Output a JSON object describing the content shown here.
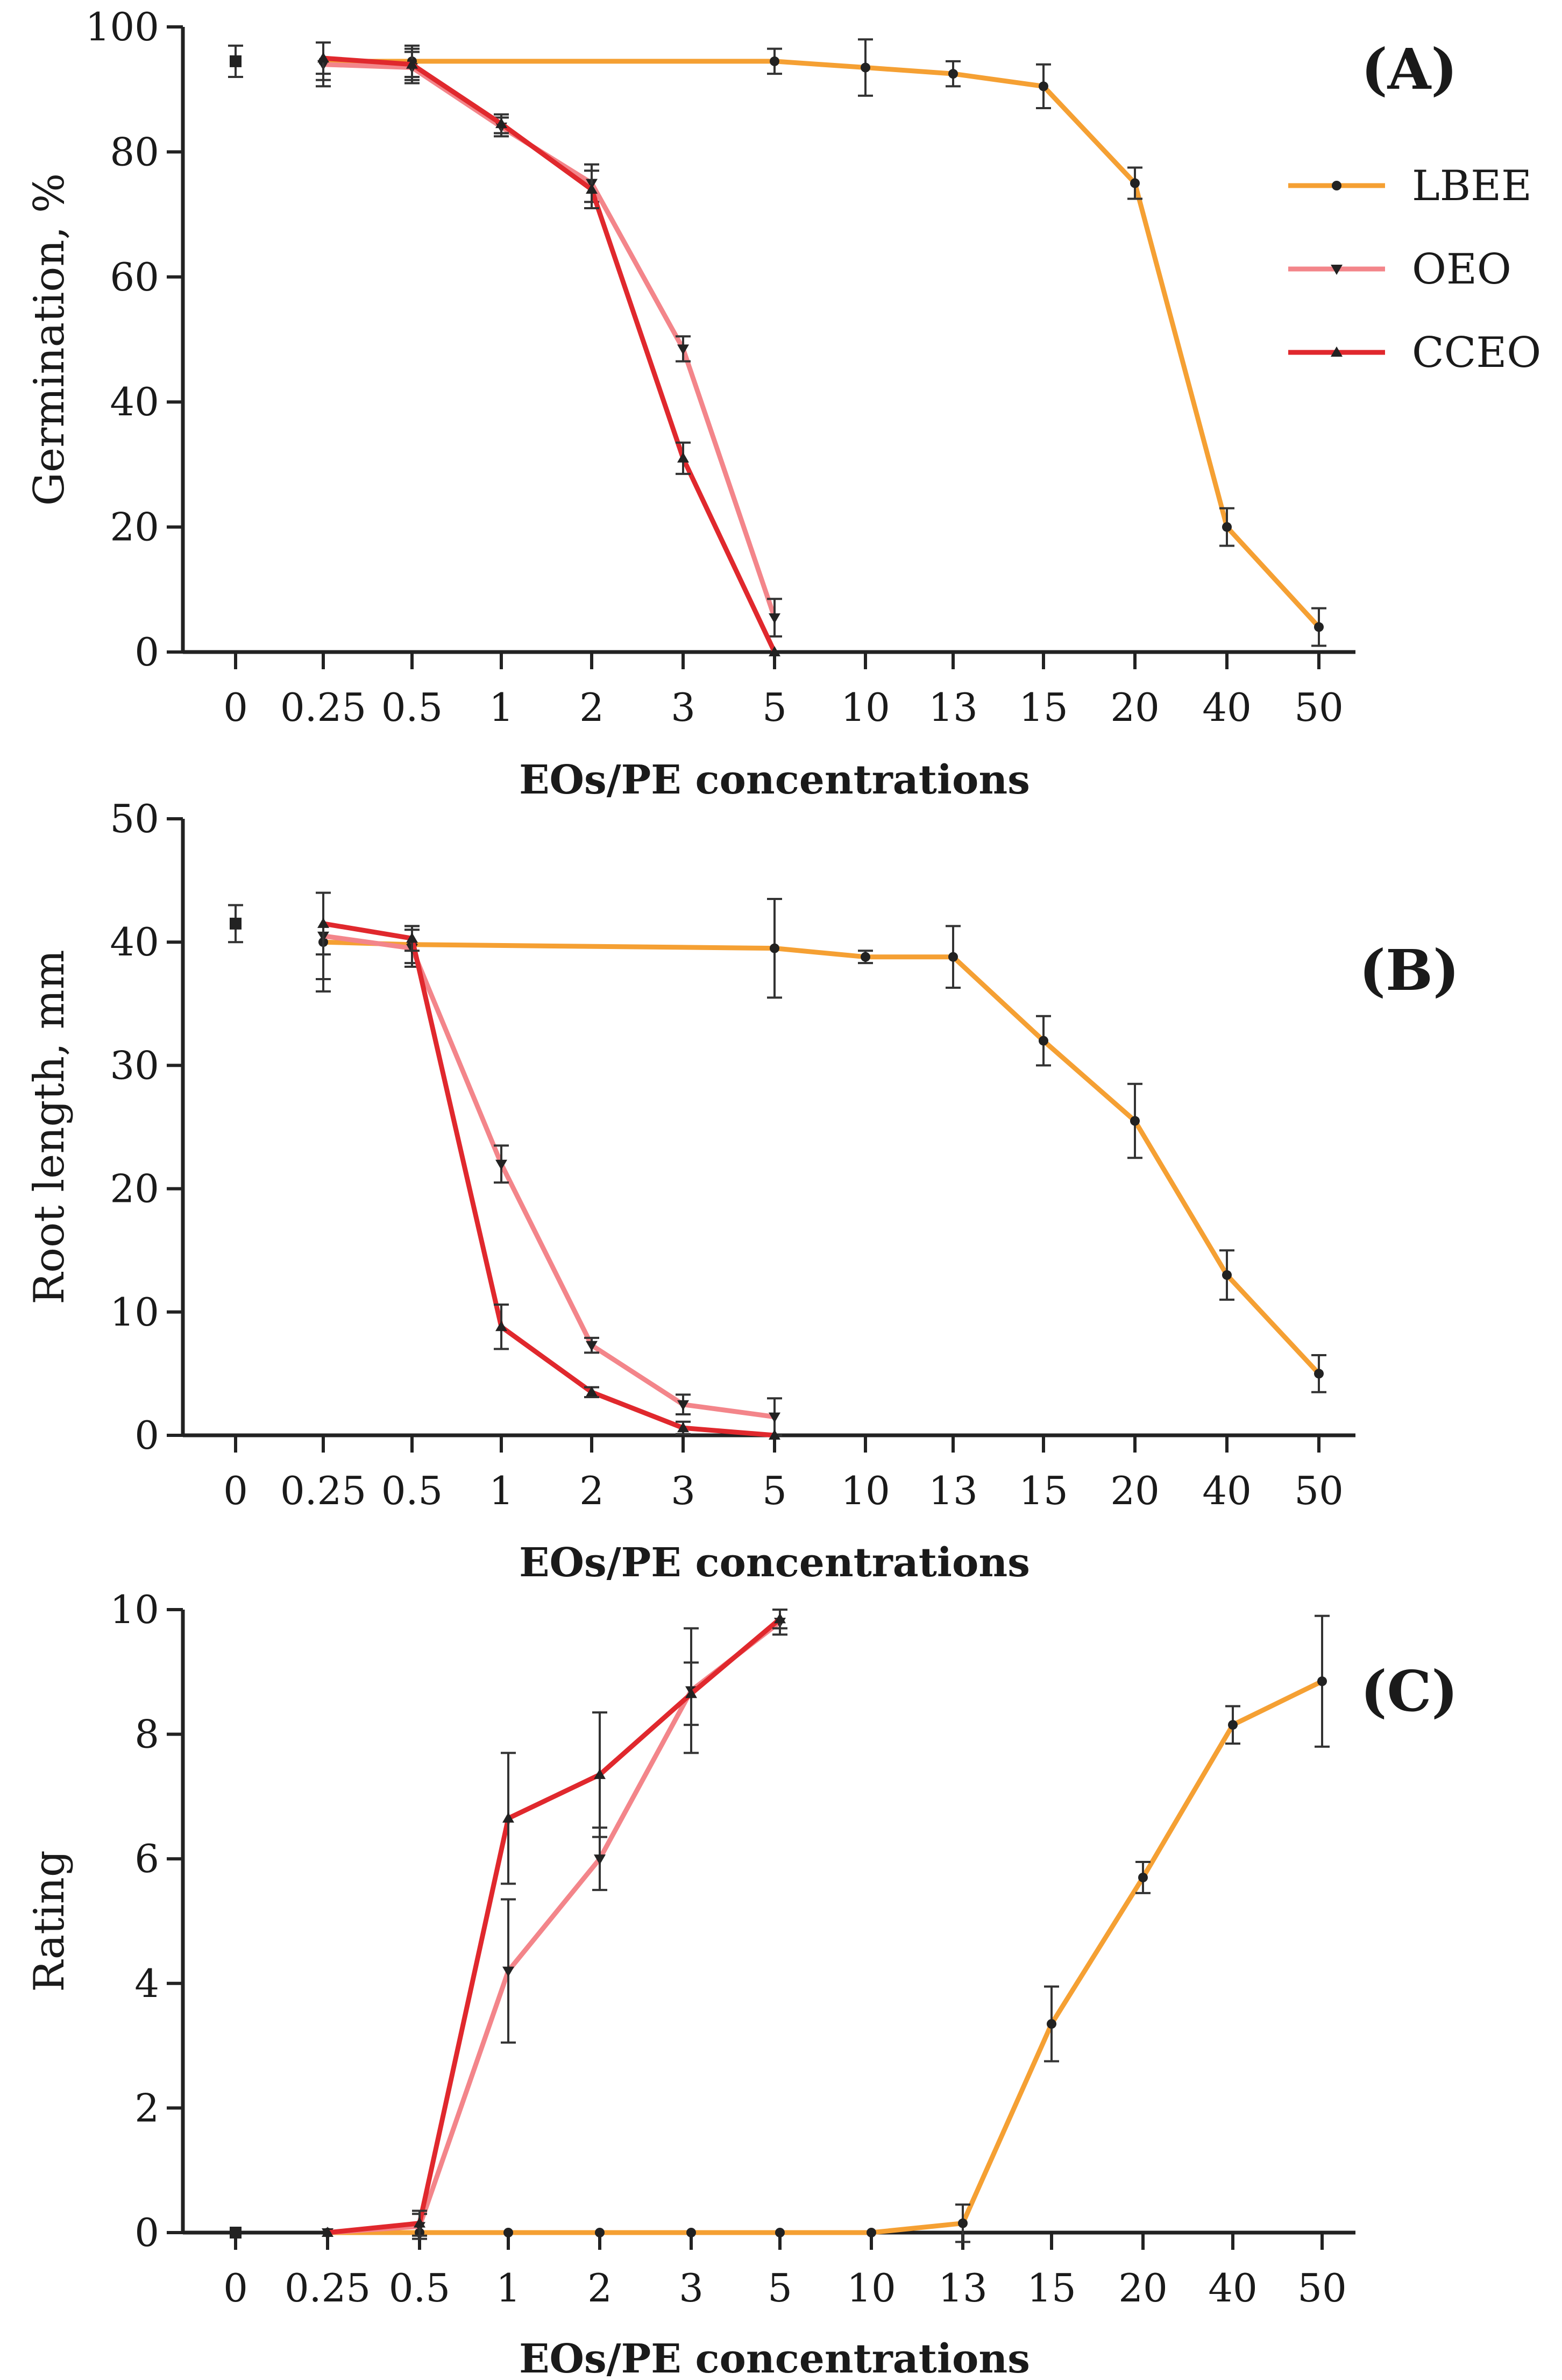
{
  "chart_data": [
    {
      "type": "line",
      "panel": "(A)",
      "xlabel": "EOs/PE concentrations",
      "ylabel": "Germination, %",
      "categories": [
        "0",
        "0.25",
        "0.5",
        "1",
        "2",
        "3",
        "5",
        "10",
        "13",
        "15",
        "20",
        "40",
        "50"
      ],
      "ylim": [
        0,
        100
      ],
      "yticks": [
        0,
        20,
        40,
        60,
        80,
        100
      ],
      "control": {
        "value": 94.5,
        "err": 2.5
      },
      "legend": [
        "LBEE",
        "OEO",
        "CCEO"
      ],
      "series": [
        {
          "name": "LBEE",
          "color": "#f5a033",
          "values": [
            null,
            94.5,
            94.5,
            null,
            null,
            null,
            94.5,
            93.5,
            92.5,
            90.5,
            75,
            20,
            4
          ],
          "errors": [
            null,
            3,
            2.5,
            null,
            null,
            null,
            2,
            4.5,
            2,
            3.5,
            2.5,
            3,
            3
          ]
        },
        {
          "name": "OEO",
          "color": "#f3858a",
          "values": [
            null,
            94,
            93.5,
            84,
            75,
            48.5,
            5.5,
            null,
            null,
            null,
            null,
            null,
            null
          ],
          "errors": [
            null,
            3.5,
            2.5,
            1.5,
            3,
            2,
            3,
            null,
            null,
            null,
            null,
            null,
            null
          ]
        },
        {
          "name": "CCEO",
          "color": "#e0282d",
          "values": [
            null,
            95,
            94,
            84.5,
            74,
            31,
            0,
            null,
            null,
            null,
            null,
            null,
            null
          ],
          "errors": [
            null,
            2.5,
            2.5,
            1.5,
            3,
            2.5,
            0,
            null,
            null,
            null,
            null,
            null,
            null
          ]
        }
      ]
    },
    {
      "type": "line",
      "panel": "(B)",
      "xlabel": "EOs/PE concentrations",
      "ylabel": "Root length, mm",
      "categories": [
        "0",
        "0.25",
        "0.5",
        "1",
        "2",
        "3",
        "5",
        "10",
        "13",
        "15",
        "20",
        "40",
        "50"
      ],
      "ylim": [
        0,
        50
      ],
      "yticks": [
        0,
        10,
        20,
        30,
        40,
        50
      ],
      "control": {
        "value": 41.5,
        "err": 1.5
      },
      "series": [
        {
          "name": "LBEE",
          "color": "#f5a033",
          "values": [
            null,
            40,
            39.8,
            null,
            null,
            null,
            39.5,
            38.8,
            38.8,
            32,
            25.5,
            13,
            5
          ],
          "errors": [
            null,
            4,
            1.5,
            null,
            null,
            null,
            4,
            0.5,
            2.5,
            2,
            3,
            2,
            1.5
          ]
        },
        {
          "name": "OEO",
          "color": "#f3858a",
          "values": [
            null,
            40.5,
            39.5,
            22,
            7.3,
            2.5,
            1.5,
            null,
            null,
            null,
            null,
            null,
            null
          ],
          "errors": [
            null,
            3.5,
            1.5,
            1.5,
            0.6,
            0.8,
            1.5,
            null,
            null,
            null,
            null,
            null,
            null
          ]
        },
        {
          "name": "CCEO",
          "color": "#e0282d",
          "values": [
            null,
            41.5,
            40.3,
            8.8,
            3.5,
            0.6,
            0,
            null,
            null,
            null,
            null,
            null,
            null
          ],
          "errors": [
            null,
            2.5,
            1,
            1.8,
            0.4,
            0.5,
            0,
            null,
            null,
            null,
            null,
            null,
            null
          ]
        }
      ]
    },
    {
      "type": "line",
      "panel": "(C)",
      "xlabel": "EOs/PE concentrations",
      "ylabel": "Rating",
      "categories": [
        "0",
        "0.25",
        "0.5",
        "1",
        "2",
        "3",
        "5",
        "10",
        "13",
        "15",
        "20",
        "40",
        "50"
      ],
      "ylim": [
        0,
        10
      ],
      "yticks": [
        0,
        2,
        4,
        6,
        8,
        10
      ],
      "control": {
        "value": 0,
        "err": 0
      },
      "series": [
        {
          "name": "LBEE",
          "color": "#f5a033",
          "values": [
            null,
            0,
            0,
            0,
            0,
            0,
            0,
            0,
            0.15,
            3.35,
            5.7,
            8.15,
            8.85
          ],
          "errors": [
            null,
            0,
            0,
            0,
            0,
            0,
            0,
            0,
            0.3,
            0.6,
            0.25,
            0.3,
            1.05
          ]
        },
        {
          "name": "OEO",
          "color": "#f3858a",
          "values": [
            null,
            0,
            0.1,
            4.2,
            6,
            8.7,
            9.8,
            null,
            null,
            null,
            null,
            null,
            null
          ],
          "errors": [
            null,
            0,
            0.2,
            1.15,
            0.5,
            1,
            0.2,
            null,
            null,
            null,
            null,
            null,
            null
          ]
        },
        {
          "name": "CCEO",
          "color": "#e0282d",
          "values": [
            null,
            0,
            0.15,
            6.65,
            7.35,
            8.65,
            9.85,
            null,
            null,
            null,
            null,
            null,
            null
          ],
          "errors": [
            null,
            0,
            0.2,
            1.05,
            1,
            0.5,
            0.15,
            null,
            null,
            null,
            null,
            null,
            null
          ]
        }
      ]
    }
  ]
}
